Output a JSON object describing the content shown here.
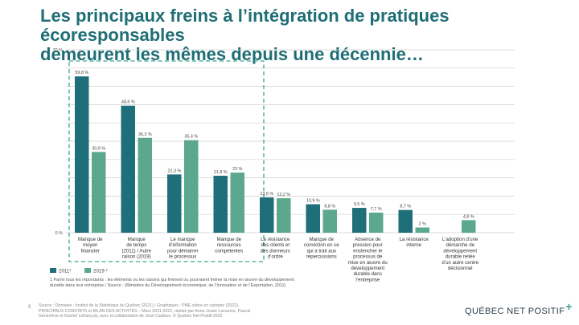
{
  "slide": {
    "title_line1": "Les principaux freins à l’intégration de pratiques écoresponsables",
    "title_line2": "demeurent les mêmes depuis une décennie…",
    "note_line1": "1 Parmi tous les répondants : les éléments ou les raisons qui freinent ou pourraient freiner la mise en œuvre du développement",
    "note_line2": "durable dans leur entreprise / Source : (Ministère du Développement économique, de l’Innovation et de l’Exportation, 2011)",
    "source_line1": "Source : Données : Institut de la Statistique du Québec (2021) / Graphiques : PME sobre en carbone (2022),",
    "source_line2": "PRINCIPAUX CONSTATS et BILAN DES ACTIVITÉS – Mars 2021-2022, réalisé par Anne-Josée Lacourse, Pascal",
    "source_line3": "Geneviève et Rachel Lefrançois, avec la collaboration de Jean Cadieux. © Québec Net Positif 2022",
    "page_number": "9",
    "logo_text": "QUÉBEC NET POSITIF",
    "logo_mark": "+"
  },
  "colors": {
    "title": "#1f6e75",
    "series_2011": "#1e6f7a",
    "series_2019": "#5ba88e",
    "highlight_box": "#3aa88f",
    "grid": "#cfcfcf"
  },
  "chart_data": {
    "type": "bar",
    "ylim": [
      0,
      70
    ],
    "yticks": [
      {
        "value": 70,
        "label": "70 %"
      },
      {
        "value": 0,
        "label": "0 %"
      }
    ],
    "grid": true,
    "legend_position": "bottom-left",
    "categories": [
      [
        "Manque de",
        "moyen",
        "financier"
      ],
      [
        "Manque",
        "de temps",
        "(2011) / Autre",
        "raison (2019)"
      ],
      [
        "Le manque",
        "d’information",
        "pour démarrer",
        "le processus"
      ],
      [
        "Manque de",
        "ressources",
        "compétentes"
      ],
      [
        "La résistance",
        "des clients et",
        "des donneurs",
        "d’ordre"
      ],
      [
        "Manque de",
        "conviction en ce",
        "qui a trait aux",
        "répercussions"
      ],
      [
        "Absence de",
        "pression pour",
        "enclencher le",
        "processus de",
        "mise en œuvre du",
        "développement",
        "durable dans",
        "l’entreprise"
      ],
      [
        "La résistance",
        "interne"
      ],
      [
        "L’adoption d’une",
        "démarche de",
        "développement",
        "durable reliée",
        "d’un autre centre",
        "décisionnel"
      ]
    ],
    "series": [
      {
        "name": "2011¹",
        "color": "#1e6f7a",
        "values": [
          59.8,
          48.6,
          22.3,
          21.8,
          13.5,
          10.9,
          9.5,
          8.7,
          null
        ],
        "labels": [
          "59,8 %",
          "48,6 %",
          "22,3 %",
          "21,8 %",
          "13,5 %",
          "10,9 %",
          "9,5 %",
          "8,7 %",
          ""
        ]
      },
      {
        "name": "2019 ²",
        "color": "#5ba88e",
        "values": [
          30.9,
          36.3,
          35.4,
          23,
          13.2,
          8.8,
          7.7,
          2,
          4.8
        ],
        "labels": [
          "30,9 %",
          "36,3 %",
          "35,4 %",
          "23 %",
          "13,2 %",
          "8,8 %",
          "7,7 %",
          "2 %",
          "4,8 %"
        ]
      }
    ],
    "highlight_first_n": 4
  }
}
